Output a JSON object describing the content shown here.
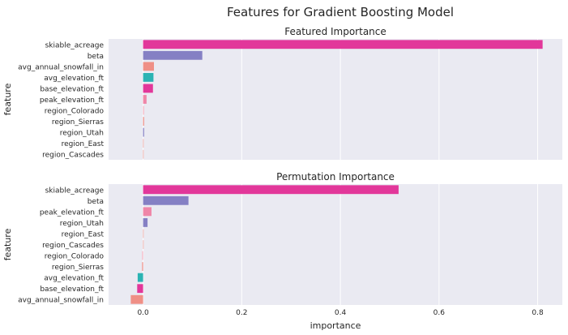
{
  "figure_title": "Features for Gradient Boosting Model",
  "chart_data": [
    {
      "type": "bar",
      "orientation": "horizontal",
      "title": "Featured Importance",
      "ylabel": "feature",
      "xlabel": "",
      "xlim": [
        -0.07,
        0.85
      ],
      "xticks": [
        0.0,
        0.2,
        0.4,
        0.6,
        0.8
      ],
      "xtick_labels": [
        "0.0",
        "0.2",
        "0.4",
        "0.6",
        "0.8"
      ],
      "show_xtick_labels": false,
      "grid": true,
      "categories": [
        "skiable_acreage",
        "beta",
        "avg_annual_snowfall_in",
        "avg_elevation_ft",
        "base_elevation_ft",
        "peak_elevation_ft",
        "region_Colorado",
        "region_Sierras",
        "region_Utah",
        "region_East",
        "region_Cascades"
      ],
      "values": [
        0.81,
        0.12,
        0.022,
        0.021,
        0.02,
        0.007,
        0.002,
        0.002,
        0.002,
        0.0005,
        0.0003
      ],
      "colors": [
        "#e2379a",
        "#8580c4",
        "#ef8f86",
        "#2bb3b3",
        "#e2379a",
        "#ef86a8",
        "#f7b6c4",
        "#ef8f86",
        "#8580c4",
        "#ef8f86",
        "#ef8f86"
      ]
    },
    {
      "type": "bar",
      "orientation": "horizontal",
      "title": "Permutation Importance",
      "ylabel": "feature",
      "xlabel": "importance",
      "xlim": [
        -0.07,
        0.85
      ],
      "xticks": [
        0.0,
        0.2,
        0.4,
        0.6,
        0.8
      ],
      "xtick_labels": [
        "0.0",
        "0.2",
        "0.4",
        "0.6",
        "0.8"
      ],
      "show_xtick_labels": true,
      "grid": true,
      "categories": [
        "skiable_acreage",
        "beta",
        "peak_elevation_ft",
        "region_Utah",
        "region_East",
        "region_Cascades",
        "region_Colorado",
        "region_Sierras",
        "avg_elevation_ft",
        "base_elevation_ft",
        "avg_annual_snowfall_in"
      ],
      "values": [
        0.518,
        0.092,
        0.017,
        0.009,
        0.0005,
        0.0003,
        -0.002,
        -0.002,
        -0.011,
        -0.012,
        -0.025
      ],
      "colors": [
        "#e2379a",
        "#8580c4",
        "#ef86a8",
        "#8580c4",
        "#ef8f86",
        "#ef8f86",
        "#f7b6c4",
        "#ef8f86",
        "#2bb3b3",
        "#e2379a",
        "#ef8f86"
      ]
    }
  ]
}
